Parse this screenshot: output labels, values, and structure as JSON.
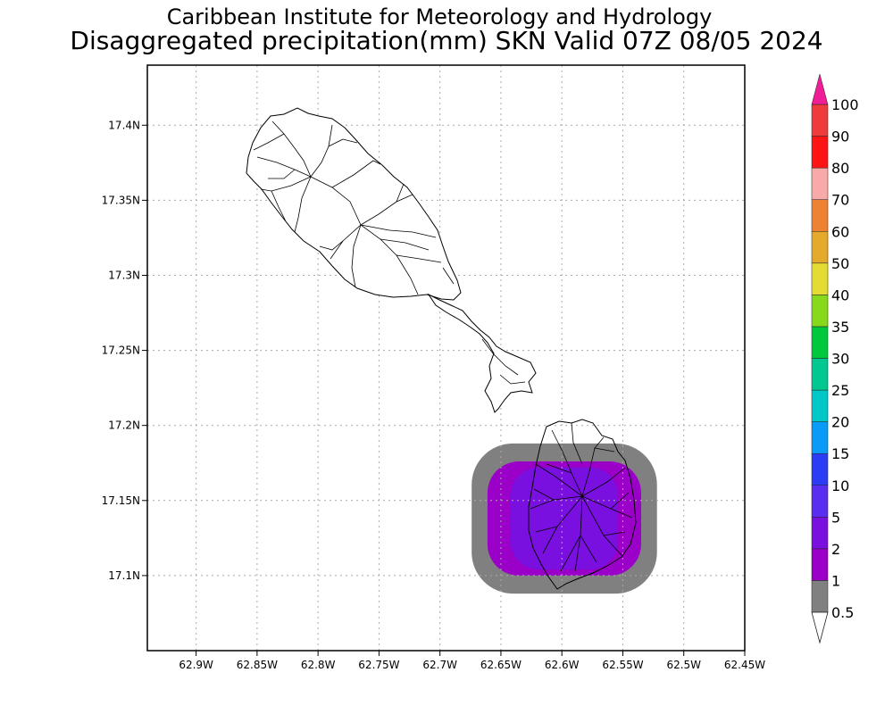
{
  "header": {
    "title": "Caribbean Institute for Meteorology and Hydrology",
    "subtitle": "Disaggregated precipitation(mm) SKN Valid 07Z 08/05 2024"
  },
  "map": {
    "lon_range": [
      -62.94,
      -62.45
    ],
    "lat_range": [
      17.05,
      17.44
    ],
    "x_ticks": [
      {
        "value": -62.9,
        "label": "62.9W"
      },
      {
        "value": -62.85,
        "label": "62.85W"
      },
      {
        "value": -62.8,
        "label": "62.8W"
      },
      {
        "value": -62.75,
        "label": "62.75W"
      },
      {
        "value": -62.7,
        "label": "62.7W"
      },
      {
        "value": -62.65,
        "label": "62.65W"
      },
      {
        "value": -62.6,
        "label": "62.6W"
      },
      {
        "value": -62.55,
        "label": "62.55W"
      },
      {
        "value": -62.5,
        "label": "62.5W"
      },
      {
        "value": -62.45,
        "label": "62.45W"
      }
    ],
    "y_ticks": [
      {
        "value": 17.4,
        "label": "17.4N"
      },
      {
        "value": 17.35,
        "label": "17.35N"
      },
      {
        "value": 17.3,
        "label": "17.3N"
      },
      {
        "value": 17.25,
        "label": "17.25N"
      },
      {
        "value": 17.2,
        "label": "17.2N"
      },
      {
        "value": 17.15,
        "label": "17.15N"
      },
      {
        "value": 17.1,
        "label": "17.1N"
      }
    ],
    "grid": true,
    "precip_field": {
      "center": [
        -62.598,
        17.138
      ],
      "layers": [
        {
          "min_mm": 1,
          "color": "#808080",
          "half_width_lon": 0.076,
          "half_height_lat": 0.05
        },
        {
          "min_mm": 2,
          "color": "#9a00c8",
          "half_width_lon": 0.063,
          "half_height_lat": 0.038
        },
        {
          "min_mm": 5,
          "color": "#7a10e0",
          "half_width_lon": 0.044,
          "half_height_lat": 0.034
        }
      ]
    }
  },
  "legend": {
    "levels": [
      {
        "label": "0.5",
        "color": "#808080"
      },
      {
        "label": "1",
        "color": "#9a00c8"
      },
      {
        "label": "2",
        "color": "#7a10e0"
      },
      {
        "label": "5",
        "color": "#5a2ef0"
      },
      {
        "label": "10",
        "color": "#2a3cf4"
      },
      {
        "label": "15",
        "color": "#0a9af8"
      },
      {
        "label": "20",
        "color": "#00c8c8"
      },
      {
        "label": "25",
        "color": "#00c890"
      },
      {
        "label": "30",
        "color": "#00c83c"
      },
      {
        "label": "35",
        "color": "#88d81c"
      },
      {
        "label": "40",
        "color": "#e4dc32"
      },
      {
        "label": "50",
        "color": "#e4aa2c"
      },
      {
        "label": "60",
        "color": "#ee8232"
      },
      {
        "label": "70",
        "color": "#f8aaa8"
      },
      {
        "label": "80",
        "color": "#ff1414"
      },
      {
        "label": "90",
        "color": "#ee3c3c"
      },
      {
        "label": "100",
        "color": "#f01e96"
      }
    ]
  }
}
